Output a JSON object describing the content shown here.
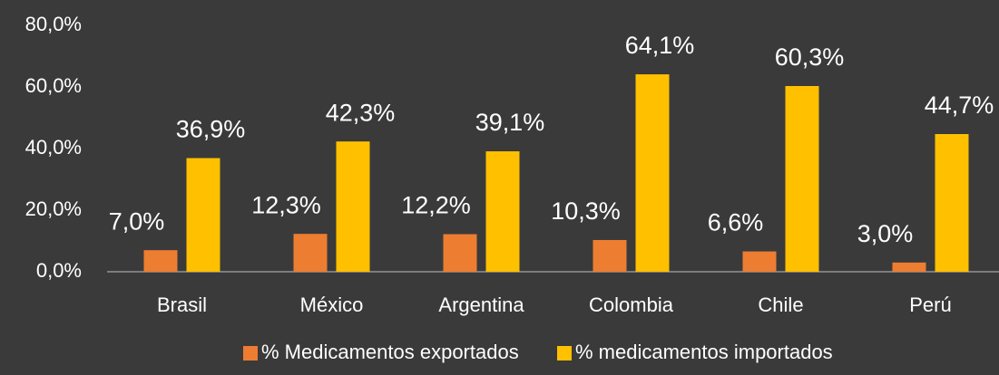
{
  "chart_data": {
    "type": "bar",
    "categories": [
      "Brasil",
      "México",
      "Argentina",
      "Colombia",
      "Chile",
      "Perú"
    ],
    "series": [
      {
        "name": "% Medicamentos exportados",
        "color": "#ed7d31",
        "values": [
          7.0,
          12.3,
          12.2,
          10.3,
          6.6,
          3.0
        ],
        "value_labels": [
          "7,0%",
          "12,3%",
          "12,2%",
          "10,3%",
          "6,6%",
          "3,0%"
        ]
      },
      {
        "name": "% medicamentos importados",
        "color": "#ffc000",
        "values": [
          36.9,
          42.3,
          39.1,
          64.1,
          60.3,
          44.7
        ],
        "value_labels": [
          "36,9%",
          "42,3%",
          "39,1%",
          "64,1%",
          "60,3%",
          "44,7%"
        ]
      }
    ],
    "ylim": [
      0,
      80
    ],
    "yticks": [
      {
        "value": 0,
        "label": "0,0%"
      },
      {
        "value": 20,
        "label": "20,0%"
      },
      {
        "value": 40,
        "label": "40,0%"
      },
      {
        "value": 60,
        "label": "60,0%"
      },
      {
        "value": 80,
        "label": "80,0%"
      }
    ],
    "grid": false,
    "legend": "bottom"
  }
}
